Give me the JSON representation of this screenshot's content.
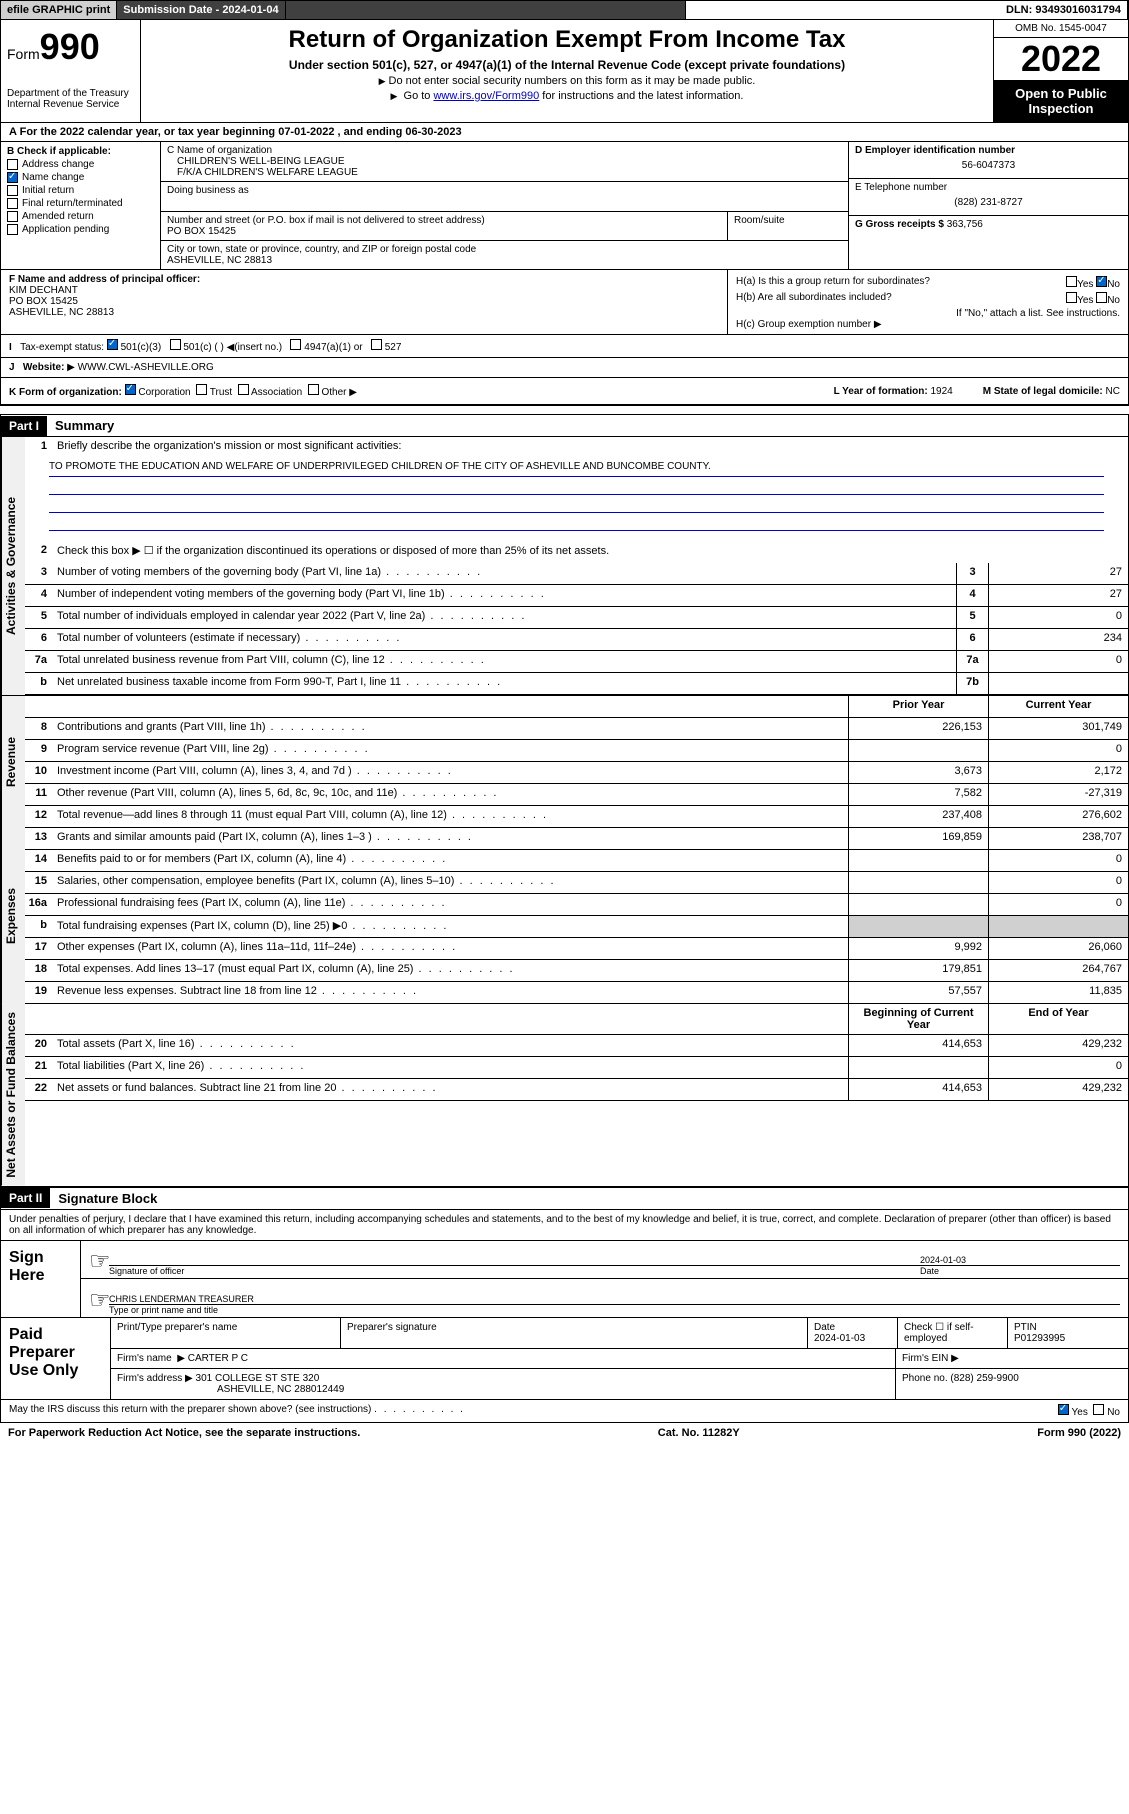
{
  "topbar": {
    "efile": "efile GRAPHIC print",
    "submission_label": "Submission Date - 2024-01-04",
    "dln": "DLN: 93493016031794"
  },
  "header": {
    "form_label": "Form",
    "form_num": "990",
    "dept": "Department of the Treasury",
    "irs": "Internal Revenue Service",
    "title": "Return of Organization Exempt From Income Tax",
    "sub": "Under section 501(c), 527, or 4947(a)(1) of the Internal Revenue Code (except private foundations)",
    "note1": "Do not enter social security numbers on this form as it may be made public.",
    "note2_pre": "Go to ",
    "note2_link": "www.irs.gov/Form990",
    "note2_post": " for instructions and the latest information.",
    "omb": "OMB No. 1545-0047",
    "year": "2022",
    "open": "Open to Public Inspection"
  },
  "period": {
    "text": "For the 2022 calendar year, or tax year beginning 07-01-2022   , and ending 06-30-2023"
  },
  "boxB": {
    "title": "B Check if applicable:",
    "items": [
      "Address change",
      "Name change",
      "Initial return",
      "Final return/terminated",
      "Amended return",
      "Application pending"
    ],
    "checked_idx": 1
  },
  "boxC": {
    "name_label": "C Name of organization",
    "name1": "CHILDREN'S WELL-BEING LEAGUE",
    "name2": "F/K/A CHILDREN'S WELFARE LEAGUE",
    "dba_label": "Doing business as",
    "street_label": "Number and street (or P.O. box if mail is not delivered to street address)",
    "room_label": "Room/suite",
    "street": "PO BOX 15425",
    "city_label": "City or town, state or province, country, and ZIP or foreign postal code",
    "city": "ASHEVILLE, NC  28813"
  },
  "boxD": {
    "label": "D Employer identification number",
    "value": "56-6047373"
  },
  "boxE": {
    "label": "E Telephone number",
    "value": "(828) 231-8727"
  },
  "boxG": {
    "label": "G Gross receipts $",
    "value": "363,756"
  },
  "boxF": {
    "label": "F Name and address of principal officer:",
    "name": "KIM DECHANT",
    "addr1": "PO BOX 15425",
    "addr2": "ASHEVILLE, NC  28813"
  },
  "boxH": {
    "a_label": "H(a)  Is this a group return for subordinates?",
    "a_yes": "Yes",
    "a_no": "No",
    "b_label": "H(b)  Are all subordinates included?",
    "b_yes": "Yes",
    "b_no": "No",
    "b_note": "If \"No,\" attach a list. See instructions.",
    "c_label": "H(c)  Group exemption number"
  },
  "boxI": {
    "label": "Tax-exempt status:",
    "opts": [
      "501(c)(3)",
      "501(c) (  ) ◀(insert no.)",
      "4947(a)(1) or",
      "527"
    ]
  },
  "boxJ": {
    "label": "Website:",
    "value": "WWW.CWL-ASHEVILLE.ORG"
  },
  "boxK": {
    "label": "K Form of organization:",
    "opts": [
      "Corporation",
      "Trust",
      "Association",
      "Other"
    ]
  },
  "boxL": {
    "label": "L Year of formation:",
    "value": "1924"
  },
  "boxM": {
    "label": "M State of legal domicile:",
    "value": "NC"
  },
  "part1": {
    "header": "Part I",
    "title": "Summary",
    "q1": "Briefly describe the organization's mission or most significant activities:",
    "mission": "TO PROMOTE THE EDUCATION AND WELFARE OF UNDERPRIVILEGED CHILDREN OF THE CITY OF ASHEVILLE AND BUNCOMBE COUNTY.",
    "q2": "Check this box ▶ ☐  if the organization discontinued its operations or disposed of more than 25% of its net assets.",
    "rows_gov": [
      {
        "n": "3",
        "d": "Number of voting members of the governing body (Part VI, line 1a)",
        "b": "3",
        "v": "27"
      },
      {
        "n": "4",
        "d": "Number of independent voting members of the governing body (Part VI, line 1b)",
        "b": "4",
        "v": "27"
      },
      {
        "n": "5",
        "d": "Total number of individuals employed in calendar year 2022 (Part V, line 2a)",
        "b": "5",
        "v": "0"
      },
      {
        "n": "6",
        "d": "Total number of volunteers (estimate if necessary)",
        "b": "6",
        "v": "234"
      },
      {
        "n": "7a",
        "d": "Total unrelated business revenue from Part VIII, column (C), line 12",
        "b": "7a",
        "v": "0"
      },
      {
        "n": "b",
        "d": "Net unrelated business taxable income from Form 990-T, Part I, line 11",
        "b": "7b",
        "v": ""
      }
    ],
    "col_prior": "Prior Year",
    "col_current": "Current Year",
    "rows_rev": [
      {
        "n": "8",
        "d": "Contributions and grants (Part VIII, line 1h)",
        "p": "226,153",
        "c": "301,749"
      },
      {
        "n": "9",
        "d": "Program service revenue (Part VIII, line 2g)",
        "p": "",
        "c": "0"
      },
      {
        "n": "10",
        "d": "Investment income (Part VIII, column (A), lines 3, 4, and 7d )",
        "p": "3,673",
        "c": "2,172"
      },
      {
        "n": "11",
        "d": "Other revenue (Part VIII, column (A), lines 5, 6d, 8c, 9c, 10c, and 11e)",
        "p": "7,582",
        "c": "-27,319"
      },
      {
        "n": "12",
        "d": "Total revenue—add lines 8 through 11 (must equal Part VIII, column (A), line 12)",
        "p": "237,408",
        "c": "276,602"
      }
    ],
    "rows_exp": [
      {
        "n": "13",
        "d": "Grants and similar amounts paid (Part IX, column (A), lines 1–3 )",
        "p": "169,859",
        "c": "238,707"
      },
      {
        "n": "14",
        "d": "Benefits paid to or for members (Part IX, column (A), line 4)",
        "p": "",
        "c": "0"
      },
      {
        "n": "15",
        "d": "Salaries, other compensation, employee benefits (Part IX, column (A), lines 5–10)",
        "p": "",
        "c": "0"
      },
      {
        "n": "16a",
        "d": "Professional fundraising fees (Part IX, column (A), line 11e)",
        "p": "",
        "c": "0"
      },
      {
        "n": "b",
        "d": "Total fundraising expenses (Part IX, column (D), line 25) ▶0",
        "p": "shaded",
        "c": "shaded"
      },
      {
        "n": "17",
        "d": "Other expenses (Part IX, column (A), lines 11a–11d, 11f–24e)",
        "p": "9,992",
        "c": "26,060"
      },
      {
        "n": "18",
        "d": "Total expenses. Add lines 13–17 (must equal Part IX, column (A), line 25)",
        "p": "179,851",
        "c": "264,767"
      },
      {
        "n": "19",
        "d": "Revenue less expenses. Subtract line 18 from line 12",
        "p": "57,557",
        "c": "11,835"
      }
    ],
    "col_begin": "Beginning of Current Year",
    "col_end": "End of Year",
    "rows_net": [
      {
        "n": "20",
        "d": "Total assets (Part X, line 16)",
        "p": "414,653",
        "c": "429,232"
      },
      {
        "n": "21",
        "d": "Total liabilities (Part X, line 26)",
        "p": "",
        "c": "0"
      },
      {
        "n": "22",
        "d": "Net assets or fund balances. Subtract line 21 from line 20",
        "p": "414,653",
        "c": "429,232"
      }
    ],
    "vtab_gov": "Activities & Governance",
    "vtab_rev": "Revenue",
    "vtab_exp": "Expenses",
    "vtab_net": "Net Assets or Fund Balances"
  },
  "part2": {
    "header": "Part II",
    "title": "Signature Block",
    "intro": "Under penalties of perjury, I declare that I have examined this return, including accompanying schedules and statements, and to the best of my knowledge and belief, it is true, correct, and complete. Declaration of preparer (other than officer) is based on all information of which preparer has any knowledge.",
    "sign_here": "Sign Here",
    "sig_officer": "Signature of officer",
    "sig_date": "Date",
    "sig_date_val": "2024-01-03",
    "sig_name": "CHRIS LENDERMAN  TREASURER",
    "sig_name_label": "Type or print name and title",
    "paid_label": "Paid Preparer Use Only",
    "prep_headers": [
      "Print/Type preparer's name",
      "Preparer's signature",
      "Date",
      "Check ☐ if self-employed",
      "PTIN"
    ],
    "prep_date": "2024-01-03",
    "prep_ptin": "P01293995",
    "firm_name_label": "Firm's name",
    "firm_name": "CARTER P C",
    "firm_ein_label": "Firm's EIN",
    "firm_addr_label": "Firm's address",
    "firm_addr1": "301 COLLEGE ST STE 320",
    "firm_addr2": "ASHEVILLE, NC  288012449",
    "firm_phone_label": "Phone no.",
    "firm_phone": "(828) 259-9900",
    "discuss": "May the IRS discuss this return with the preparer shown above? (see instructions)",
    "discuss_yes": "Yes",
    "discuss_no": "No"
  },
  "footer": {
    "pra": "For Paperwork Reduction Act Notice, see the separate instructions.",
    "cat": "Cat. No. 11282Y",
    "form": "Form 990 (2022)"
  }
}
